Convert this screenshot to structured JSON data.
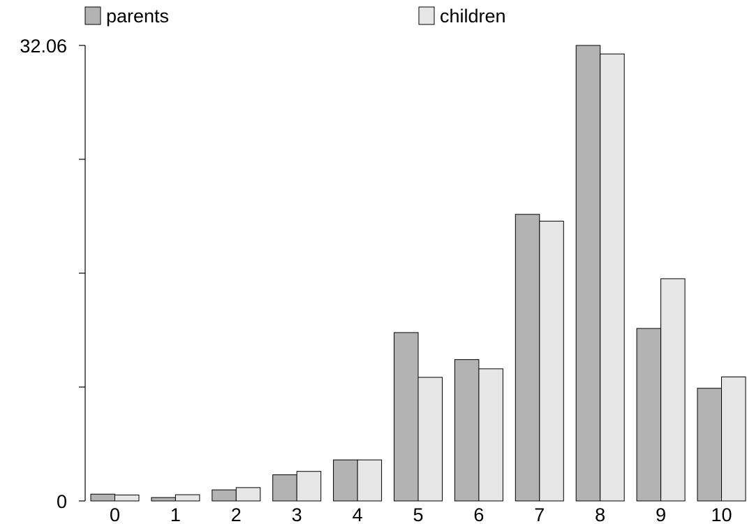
{
  "chart_data": {
    "type": "bar",
    "categories": [
      "0",
      "1",
      "2",
      "3",
      "4",
      "5",
      "6",
      "7",
      "8",
      "9",
      "10"
    ],
    "series": [
      {
        "name": "parents",
        "color": "#b3b3b3",
        "values": [
          0.48,
          0.24,
          0.78,
          1.84,
          2.89,
          11.85,
          9.95,
          20.17,
          32.06,
          12.14,
          7.93
        ]
      },
      {
        "name": "children",
        "color": "#e6e6e6",
        "values": [
          0.42,
          0.44,
          0.94,
          2.08,
          2.89,
          8.7,
          9.3,
          19.69,
          31.46,
          15.64,
          8.73
        ]
      }
    ],
    "ylim": [
      0,
      32.06
    ],
    "yticks": [
      0,
      8.015,
      16.03,
      24.045,
      32.06
    ],
    "ytick_labels": [
      "0",
      "",
      "",
      "",
      "32.06"
    ],
    "xlabel": "",
    "ylabel": "",
    "legend_position": "top",
    "grid": false
  }
}
